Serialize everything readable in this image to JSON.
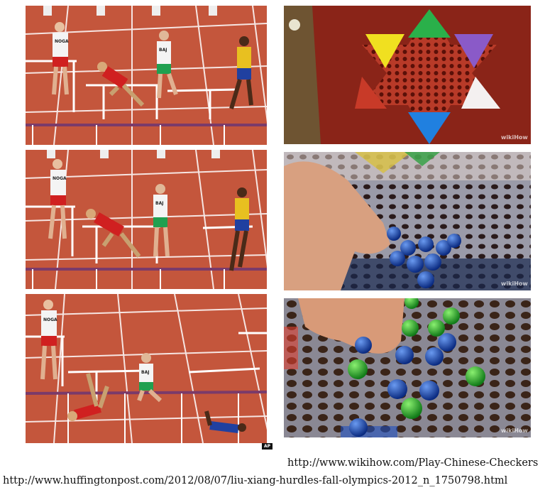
{
  "watermarks": {
    "ap": "AP",
    "wikihow": "wikiHow"
  },
  "bibs": {
    "noga": "NOGA",
    "baj": "BAJ"
  },
  "captions": {
    "wikihow_url": "http://www.wikihow.com/Play-Chinese-Checkers",
    "huffpost_url": "http://www.huffingtonpost.com/2012/08/07/liu-xiang-hurdles-fall-olympics-2012_n_1750798.html"
  },
  "colors": {
    "track": "#c4563c",
    "lane_line": "#ffffff",
    "board": "#8a2418",
    "table_wood": "#6e5432",
    "marble_blue": "#1f4fb8",
    "marble_green": "#2fa33a"
  }
}
